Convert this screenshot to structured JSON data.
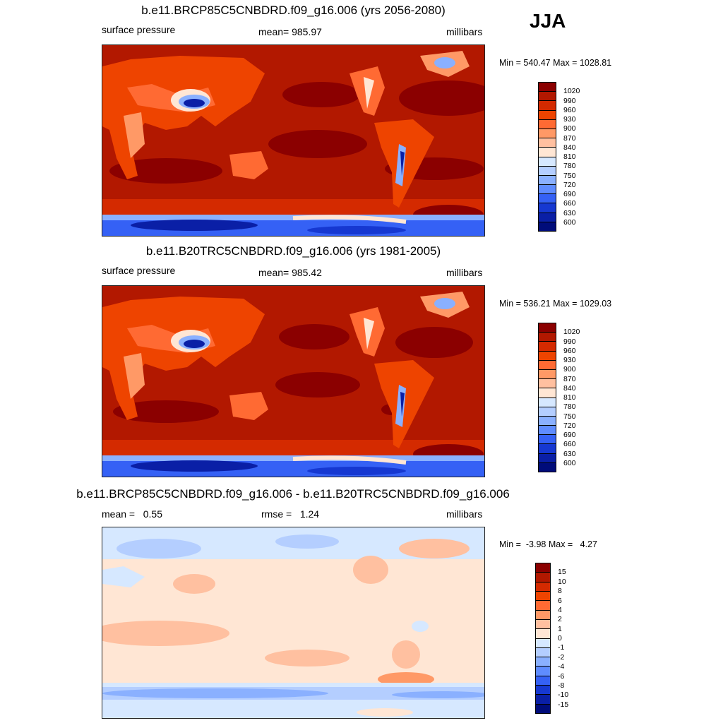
{
  "season": "JJA",
  "panels": [
    {
      "title": "b.e11.BRCP85C5CNBDRD.f09_g16.006 (yrs 2056-2080)",
      "left_label": "surface pressure",
      "center_label": "mean= 985.97",
      "right_label": "millibars",
      "minmax": "Min = 540.47 Max = 1028.81",
      "colorbar": {
        "labels": [
          "1020",
          "990",
          "960",
          "930",
          "900",
          "870",
          "840",
          "810",
          "780",
          "750",
          "720",
          "690",
          "660",
          "630",
          "600"
        ],
        "colors": [
          "#8b0000",
          "#b21800",
          "#d42a00",
          "#ee4400",
          "#ff6a33",
          "#ff9966",
          "#ffc0a0",
          "#ffe6d4",
          "#d6e8ff",
          "#b4ceff",
          "#8ab0ff",
          "#5f8cff",
          "#3561f5",
          "#1638d1",
          "#0a1fa6",
          "#000c7a"
        ]
      }
    },
    {
      "title": "b.e11.B20TRC5CNBDRD.f09_g16.006 (yrs 1981-2005)",
      "left_label": "surface pressure",
      "center_label": "mean= 985.42",
      "right_label": "millibars",
      "minmax": "Min = 536.21 Max = 1029.03",
      "colorbar": {
        "labels": [
          "1020",
          "990",
          "960",
          "930",
          "900",
          "870",
          "840",
          "810",
          "780",
          "750",
          "720",
          "690",
          "660",
          "630",
          "600"
        ],
        "colors": [
          "#8b0000",
          "#b21800",
          "#d42a00",
          "#ee4400",
          "#ff6a33",
          "#ff9966",
          "#ffc0a0",
          "#ffe6d4",
          "#d6e8ff",
          "#b4ceff",
          "#8ab0ff",
          "#5f8cff",
          "#3561f5",
          "#1638d1",
          "#0a1fa6",
          "#000c7a"
        ]
      }
    },
    {
      "title": "b.e11.BRCP85C5CNBDRD.f09_g16.006 - b.e11.B20TRC5CNBDRD.f09_g16.006",
      "left_label": "mean =   0.55",
      "center_label": "rmse =   1.24",
      "right_label": "millibars",
      "minmax": "Min =  -3.98 Max =   4.27",
      "colorbar": {
        "labels": [
          "15",
          "10",
          "8",
          "6",
          "4",
          "2",
          "1",
          "0",
          "-1",
          "-2",
          "-4",
          "-6",
          "-8",
          "-10",
          "-15"
        ],
        "colors": [
          "#8b0000",
          "#b21800",
          "#d42a00",
          "#ee4400",
          "#ff6a33",
          "#ff9966",
          "#ffc0a0",
          "#ffe6d4",
          "#d6e8ff",
          "#b4ceff",
          "#8ab0ff",
          "#5f8cff",
          "#3561f5",
          "#1638d1",
          "#0a1fa6",
          "#000c7a"
        ]
      }
    }
  ]
}
